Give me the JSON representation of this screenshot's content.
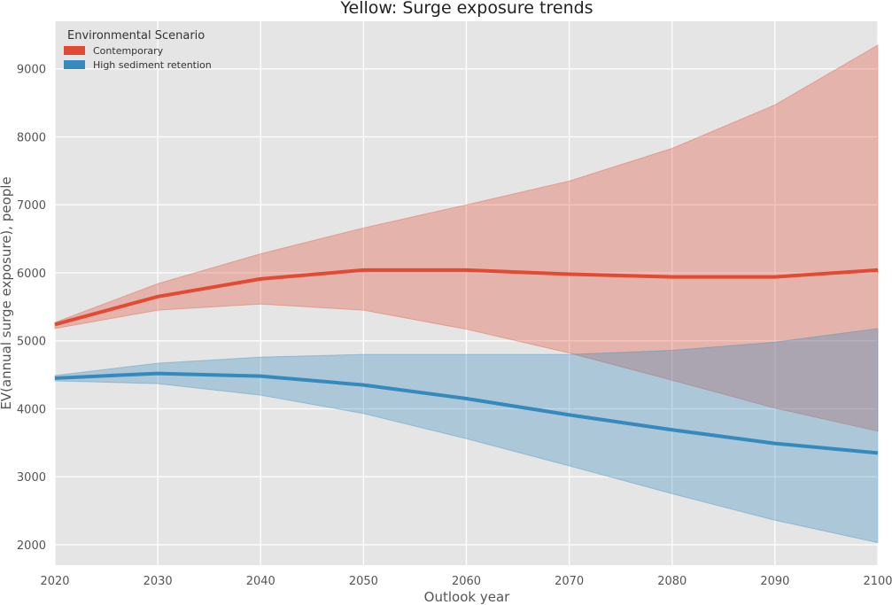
{
  "chart_data": {
    "type": "line",
    "title": "Yellow: Surge exposure trends",
    "xlabel": "Outlook year",
    "ylabel": "EV(annual surge exposure), people",
    "xlim": [
      2020,
      2100
    ],
    "ylim": [
      1700,
      9700
    ],
    "x": [
      2020,
      2030,
      2040,
      2050,
      2060,
      2070,
      2080,
      2090,
      2100
    ],
    "xticks": [
      "2020",
      "2030",
      "2040",
      "2050",
      "2060",
      "2070",
      "2080",
      "2090",
      "2100"
    ],
    "yticks": [
      "2000",
      "3000",
      "4000",
      "5000",
      "6000",
      "7000",
      "8000",
      "9000"
    ],
    "ytick_values": [
      2000,
      3000,
      4000,
      5000,
      6000,
      7000,
      8000,
      9000
    ],
    "grid": true,
    "legend": {
      "title": "Environmental Scenario",
      "placement": "top-left"
    },
    "series": [
      {
        "name": "Contemporary",
        "color": "#e24a33",
        "values": [
          5240,
          5650,
          5910,
          6040,
          6040,
          5980,
          5940,
          5940,
          6040
        ],
        "upper": [
          5270,
          5840,
          6280,
          6660,
          7000,
          7350,
          7830,
          8470,
          9350
        ],
        "lower": [
          5180,
          5450,
          5540,
          5450,
          5170,
          4820,
          4420,
          4010,
          3670
        ]
      },
      {
        "name": "High sediment retention",
        "color": "#348abd",
        "values": [
          4450,
          4520,
          4480,
          4350,
          4150,
          3910,
          3690,
          3490,
          3350
        ],
        "upper": [
          4490,
          4670,
          4760,
          4800,
          4800,
          4800,
          4860,
          4980,
          5180
        ],
        "lower": [
          4410,
          4370,
          4200,
          3930,
          3560,
          3160,
          2750,
          2360,
          2030
        ]
      }
    ]
  }
}
